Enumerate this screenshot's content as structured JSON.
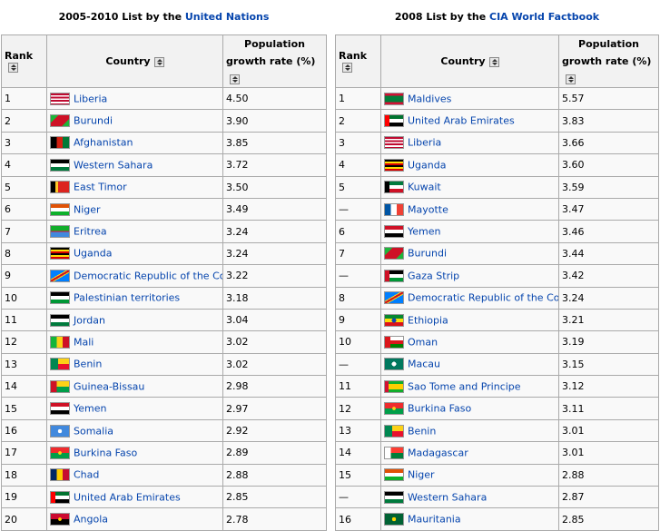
{
  "left": {
    "title_prefix": "2005-2010 List by the ",
    "title_link": "United Nations",
    "headers": {
      "rank": "Rank",
      "country": "Country",
      "growth_line1": "Population",
      "growth_line2": "growth rate (%)"
    },
    "rows": [
      {
        "rank": "1",
        "country": "Liberia",
        "rate": "4.50",
        "flag": "flag-liberia-icon",
        "flag_css": "linear-gradient(#bf0a30 0 15%, #fff 15% 30%, #bf0a30 30% 45%, #fff 45% 60%, #bf0a30 60% 75%, #fff 75% 90%, #bf0a30 90%)"
      },
      {
        "rank": "2",
        "country": "Burundi",
        "rate": "3.90",
        "flag": "flag-burundi-icon",
        "flag_css": "linear-gradient(135deg, #1eb53a 0 25%, #ce1126 25% 75%, #1eb53a 75%)"
      },
      {
        "rank": "3",
        "country": "Afghanistan",
        "rate": "3.85",
        "flag": "flag-afghanistan-icon",
        "flag_css": "linear-gradient(90deg, #000 0 33%, #d32011 33% 66%, #007a36 66%)"
      },
      {
        "rank": "4",
        "country": "Western Sahara",
        "rate": "3.72",
        "flag": "flag-western-sahara-icon",
        "flag_css": "linear-gradient(#000 0 33%, #fff 33% 66%, #007a3d 66%)"
      },
      {
        "rank": "5",
        "country": "East Timor",
        "rate": "3.50",
        "flag": "flag-east-timor-icon",
        "flag_css": "linear-gradient(90deg, #000 0 25%, #ffc726 25% 40%, #dc241f 40%)"
      },
      {
        "rank": "6",
        "country": "Niger",
        "rate": "3.49",
        "flag": "flag-niger-icon",
        "flag_css": "linear-gradient(#e05206 0 33%, #fff 33% 66%, #0db02b 66%)"
      },
      {
        "rank": "7",
        "country": "Eritrea",
        "rate": "3.24",
        "flag": "flag-eritrea-icon",
        "flag_css": "linear-gradient(#12ad2b 0 45%, #ea0437 45% 55%, #4189dd 55%)"
      },
      {
        "rank": "8",
        "country": "Uganda",
        "rate": "3.24",
        "flag": "flag-uganda-icon",
        "flag_css": "linear-gradient(#000 0 17%, #fcdc04 17% 33%, #d90000 33% 50%, #000 50% 67%, #fcdc04 67% 83%, #d90000 83%)"
      },
      {
        "rank": "9",
        "country": "Democratic Republic of the Congo",
        "rate": "3.22",
        "flag": "flag-dr-congo-icon",
        "flag_css": "linear-gradient(150deg, #007fff 0 40%, #f7d618 40% 45%, #ce1021 45% 55%, #f7d618 55% 60%, #007fff 60%)"
      },
      {
        "rank": "10",
        "country": "Palestinian territories",
        "rate": "3.18",
        "flag": "flag-palestine-icon",
        "flag_css": "linear-gradient(#000 0 33%, #fff 33% 66%, #009736 66%)"
      },
      {
        "rank": "11",
        "country": "Jordan",
        "rate": "3.04",
        "flag": "flag-jordan-icon",
        "flag_css": "linear-gradient(#000 0 33%, #fff 33% 66%, #007a3d 66%)"
      },
      {
        "rank": "12",
        "country": "Mali",
        "rate": "3.02",
        "flag": "flag-mali-icon",
        "flag_css": "linear-gradient(90deg, #14b53a 0 33%, #fcd116 33% 66%, #ce1126 66%)"
      },
      {
        "rank": "13",
        "country": "Benin",
        "rate": "3.02",
        "flag": "flag-benin-icon",
        "flag_css": "linear-gradient(90deg, #008751 0 40%, transparent 40%), linear-gradient(#fcd116 0 50%, #e8112d 50%)"
      },
      {
        "rank": "14",
        "country": "Guinea-Bissau",
        "rate": "2.98",
        "flag": "flag-guinea-bissau-icon",
        "flag_css": "linear-gradient(90deg, #ce1126 0 33%, transparent 33%), linear-gradient(#fcd116 0 50%, #009e49 50%)"
      },
      {
        "rank": "15",
        "country": "Yemen",
        "rate": "2.97",
        "flag": "flag-yemen-icon",
        "flag_css": "linear-gradient(#ce1126 0 33%, #fff 33% 66%, #000 66%)"
      },
      {
        "rank": "16",
        "country": "Somalia",
        "rate": "2.92",
        "flag": "flag-somalia-icon",
        "flag_css": "radial-gradient(circle, #fff 0 18%, #4189dd 20%)"
      },
      {
        "rank": "17",
        "country": "Burkina Faso",
        "rate": "2.89",
        "flag": "flag-burkina-faso-icon",
        "flag_css": "radial-gradient(circle, #fcd116 0 15%, transparent 17%), linear-gradient(#ef2b2d 0 50%, #009e49 50%)"
      },
      {
        "rank": "18",
        "country": "Chad",
        "rate": "2.88",
        "flag": "flag-chad-icon",
        "flag_css": "linear-gradient(90deg, #002664 0 33%, #fecb00 33% 66%, #c60c30 66%)"
      },
      {
        "rank": "19",
        "country": "United Arab Emirates",
        "rate": "2.85",
        "flag": "flag-uae-icon",
        "flag_css": "linear-gradient(90deg, #ff0000 0 25%, transparent 25%), linear-gradient(#00732f 0 33%, #fff 33% 66%, #000 66%)"
      },
      {
        "rank": "20",
        "country": "Angola",
        "rate": "2.78",
        "flag": "flag-angola-icon",
        "flag_css": "radial-gradient(circle, #ffcb00 0 15%, transparent 17%), linear-gradient(#cc092f 0 50%, #000 50%)"
      }
    ]
  },
  "right": {
    "title_prefix": "2008 List by the ",
    "title_link": "CIA World Factbook",
    "headers": {
      "rank": "Rank",
      "country": "Country",
      "growth_line1": "Population",
      "growth_line2": "growth rate (%)"
    },
    "rows": [
      {
        "rank": "1",
        "country": "Maldives",
        "rate": "5.57",
        "flag": "flag-maldives-icon",
        "flag_css": "linear-gradient(#d21034 0 20%, #007e3a 20% 80%, #d21034 80%)"
      },
      {
        "rank": "2",
        "country": "United Arab Emirates",
        "rate": "3.83",
        "flag": "flag-uae-icon",
        "flag_css": "linear-gradient(90deg, #ff0000 0 25%, transparent 25%), linear-gradient(#00732f 0 33%, #fff 33% 66%, #000 66%)"
      },
      {
        "rank": "3",
        "country": "Liberia",
        "rate": "3.66",
        "flag": "flag-liberia-icon",
        "flag_css": "linear-gradient(#bf0a30 0 15%, #fff 15% 30%, #bf0a30 30% 45%, #fff 45% 60%, #bf0a30 60% 75%, #fff 75% 90%, #bf0a30 90%)"
      },
      {
        "rank": "4",
        "country": "Uganda",
        "rate": "3.60",
        "flag": "flag-uganda-icon",
        "flag_css": "linear-gradient(#000 0 17%, #fcdc04 17% 33%, #d90000 33% 50%, #000 50% 67%, #fcdc04 67% 83%, #d90000 83%)"
      },
      {
        "rank": "5",
        "country": "Kuwait",
        "rate": "3.59",
        "flag": "flag-kuwait-icon",
        "flag_css": "linear-gradient(90deg, #000 0 25%, transparent 25%), linear-gradient(#007a3d 0 33%, #fff 33% 66%, #ce1126 66%)"
      },
      {
        "rank": "—",
        "country": "Mayotte",
        "rate": "3.47",
        "flag": "flag-mayotte-icon",
        "flag_css": "linear-gradient(90deg, #0055a4 0 33%, #fff 33% 66%, #ef4135 66%)"
      },
      {
        "rank": "6",
        "country": "Yemen",
        "rate": "3.46",
        "flag": "flag-yemen-icon",
        "flag_css": "linear-gradient(#ce1126 0 33%, #fff 33% 66%, #000 66%)"
      },
      {
        "rank": "7",
        "country": "Burundi",
        "rate": "3.44",
        "flag": "flag-burundi-icon",
        "flag_css": "linear-gradient(135deg, #1eb53a 0 25%, #ce1126 25% 75%, #1eb53a 75%)"
      },
      {
        "rank": "—",
        "country": "Gaza Strip",
        "rate": "3.42",
        "flag": "flag-gaza-strip-icon",
        "flag_css": "linear-gradient(90deg, #ce1126 0 25%, transparent 25%), linear-gradient(#000 0 33%, #fff 33% 66%, #009736 66%)"
      },
      {
        "rank": "8",
        "country": "Democratic Republic of the Congo",
        "rate": "3.24",
        "flag": "flag-dr-congo-icon",
        "flag_css": "linear-gradient(150deg, #007fff 0 40%, #f7d618 40% 45%, #ce1021 45% 55%, #f7d618 55% 60%, #007fff 60%)"
      },
      {
        "rank": "9",
        "country": "Ethiopia",
        "rate": "3.21",
        "flag": "flag-ethiopia-icon",
        "flag_css": "radial-gradient(circle, #0f47af 0 20%, transparent 22%), linear-gradient(#078930 0 33%, #fcdd09 33% 66%, #da121a 66%)"
      },
      {
        "rank": "10",
        "country": "Oman",
        "rate": "3.19",
        "flag": "flag-oman-icon",
        "flag_css": "linear-gradient(90deg, #db161b 0 30%, transparent 30%), linear-gradient(#fff 0 33%, #db161b 33% 66%, #008000 66%)"
      },
      {
        "rank": "—",
        "country": "Macau",
        "rate": "3.15",
        "flag": "flag-macau-icon",
        "flag_css": "radial-gradient(circle, #fff 0 20%, #00785e 22%)"
      },
      {
        "rank": "11",
        "country": "Sao Tome and Principe",
        "rate": "3.12",
        "flag": "flag-sao-tome-icon",
        "flag_css": "linear-gradient(90deg, #d21034 0 20%, transparent 20%), linear-gradient(#12ad2b 0 25%, #ffce00 25% 75%, #12ad2b 75%)"
      },
      {
        "rank": "12",
        "country": "Burkina Faso",
        "rate": "3.11",
        "flag": "flag-burkina-faso-icon",
        "flag_css": "radial-gradient(circle, #fcd116 0 15%, transparent 17%), linear-gradient(#ef2b2d 0 50%, #009e49 50%)"
      },
      {
        "rank": "13",
        "country": "Benin",
        "rate": "3.01",
        "flag": "flag-benin-icon",
        "flag_css": "linear-gradient(90deg, #008751 0 40%, transparent 40%), linear-gradient(#fcd116 0 50%, #e8112d 50%)"
      },
      {
        "rank": "14",
        "country": "Madagascar",
        "rate": "3.01",
        "flag": "flag-madagascar-icon",
        "flag_css": "linear-gradient(90deg, #fff 0 33%, transparent 33%), linear-gradient(#fc3d32 0 50%, #007e3a 50%)"
      },
      {
        "rank": "15",
        "country": "Niger",
        "rate": "2.88",
        "flag": "flag-niger-icon",
        "flag_css": "linear-gradient(#e05206 0 33%, #fff 33% 66%, #0db02b 66%)"
      },
      {
        "rank": "—",
        "country": "Western Sahara",
        "rate": "2.87",
        "flag": "flag-western-sahara-icon",
        "flag_css": "linear-gradient(#000 0 33%, #fff 33% 66%, #007a3d 66%)"
      },
      {
        "rank": "16",
        "country": "Mauritania",
        "rate": "2.85",
        "flag": "flag-mauritania-icon",
        "flag_css": "radial-gradient(circle, #ffd700 0 18%, #006233 20%)"
      }
    ]
  }
}
